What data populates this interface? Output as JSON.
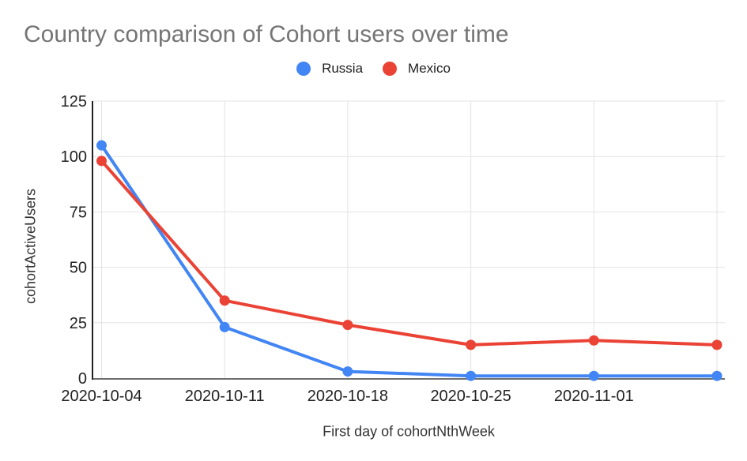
{
  "chart_data": {
    "type": "line",
    "title": "Country comparison of Cohort users over time",
    "x": [
      "2020-10-04",
      "2020-10-11",
      "2020-10-18",
      "2020-10-25",
      "2020-11-01",
      ""
    ],
    "series": [
      {
        "name": "Russia",
        "color": "#4285F4",
        "values": [
          105,
          23,
          3,
          1,
          1,
          1
        ]
      },
      {
        "name": "Mexico",
        "color": "#EA4335",
        "values": [
          98,
          35,
          24,
          15,
          17,
          15
        ]
      }
    ],
    "xlabel": "First day of cohortNthWeek",
    "ylabel": "cohortActiveUsers",
    "ylim": [
      0,
      125
    ],
    "y_ticks": [
      0,
      25,
      50,
      75,
      100,
      125
    ],
    "grid": true,
    "legend_position": "top",
    "colors": {
      "title_text": "#757575",
      "tick_text": "#222222",
      "axis_title_text": "#333333",
      "gridline": "#e3e3e3",
      "y_axis_line": "#212121",
      "x_axis_line": "#6e6e6e"
    }
  }
}
